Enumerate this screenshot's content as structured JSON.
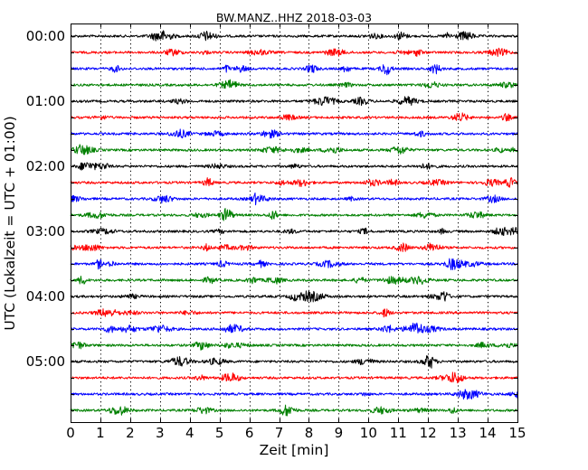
{
  "chart_data": {
    "type": "line",
    "title": "BW.MANZ..HHZ 2018-03-03",
    "xlabel": "Zeit  [min]",
    "ylabel": "UTC (Lokalzeit = UTC + 01:00)",
    "xlim": [
      0,
      15
    ],
    "x_ticks": [
      "0",
      "1",
      "2",
      "3",
      "4",
      "5",
      "6",
      "7",
      "8",
      "9",
      "10",
      "11",
      "12",
      "13",
      "14",
      "15"
    ],
    "y_tick_labels": [
      "00:00",
      "01:00",
      "02:00",
      "03:00",
      "04:00",
      "05:00"
    ],
    "trace_interval_min": 15,
    "trace_count": 24,
    "grid": "vertical dotted",
    "colors": [
      "#000000",
      "#ff0000",
      "#0000ff",
      "#008000"
    ]
  }
}
